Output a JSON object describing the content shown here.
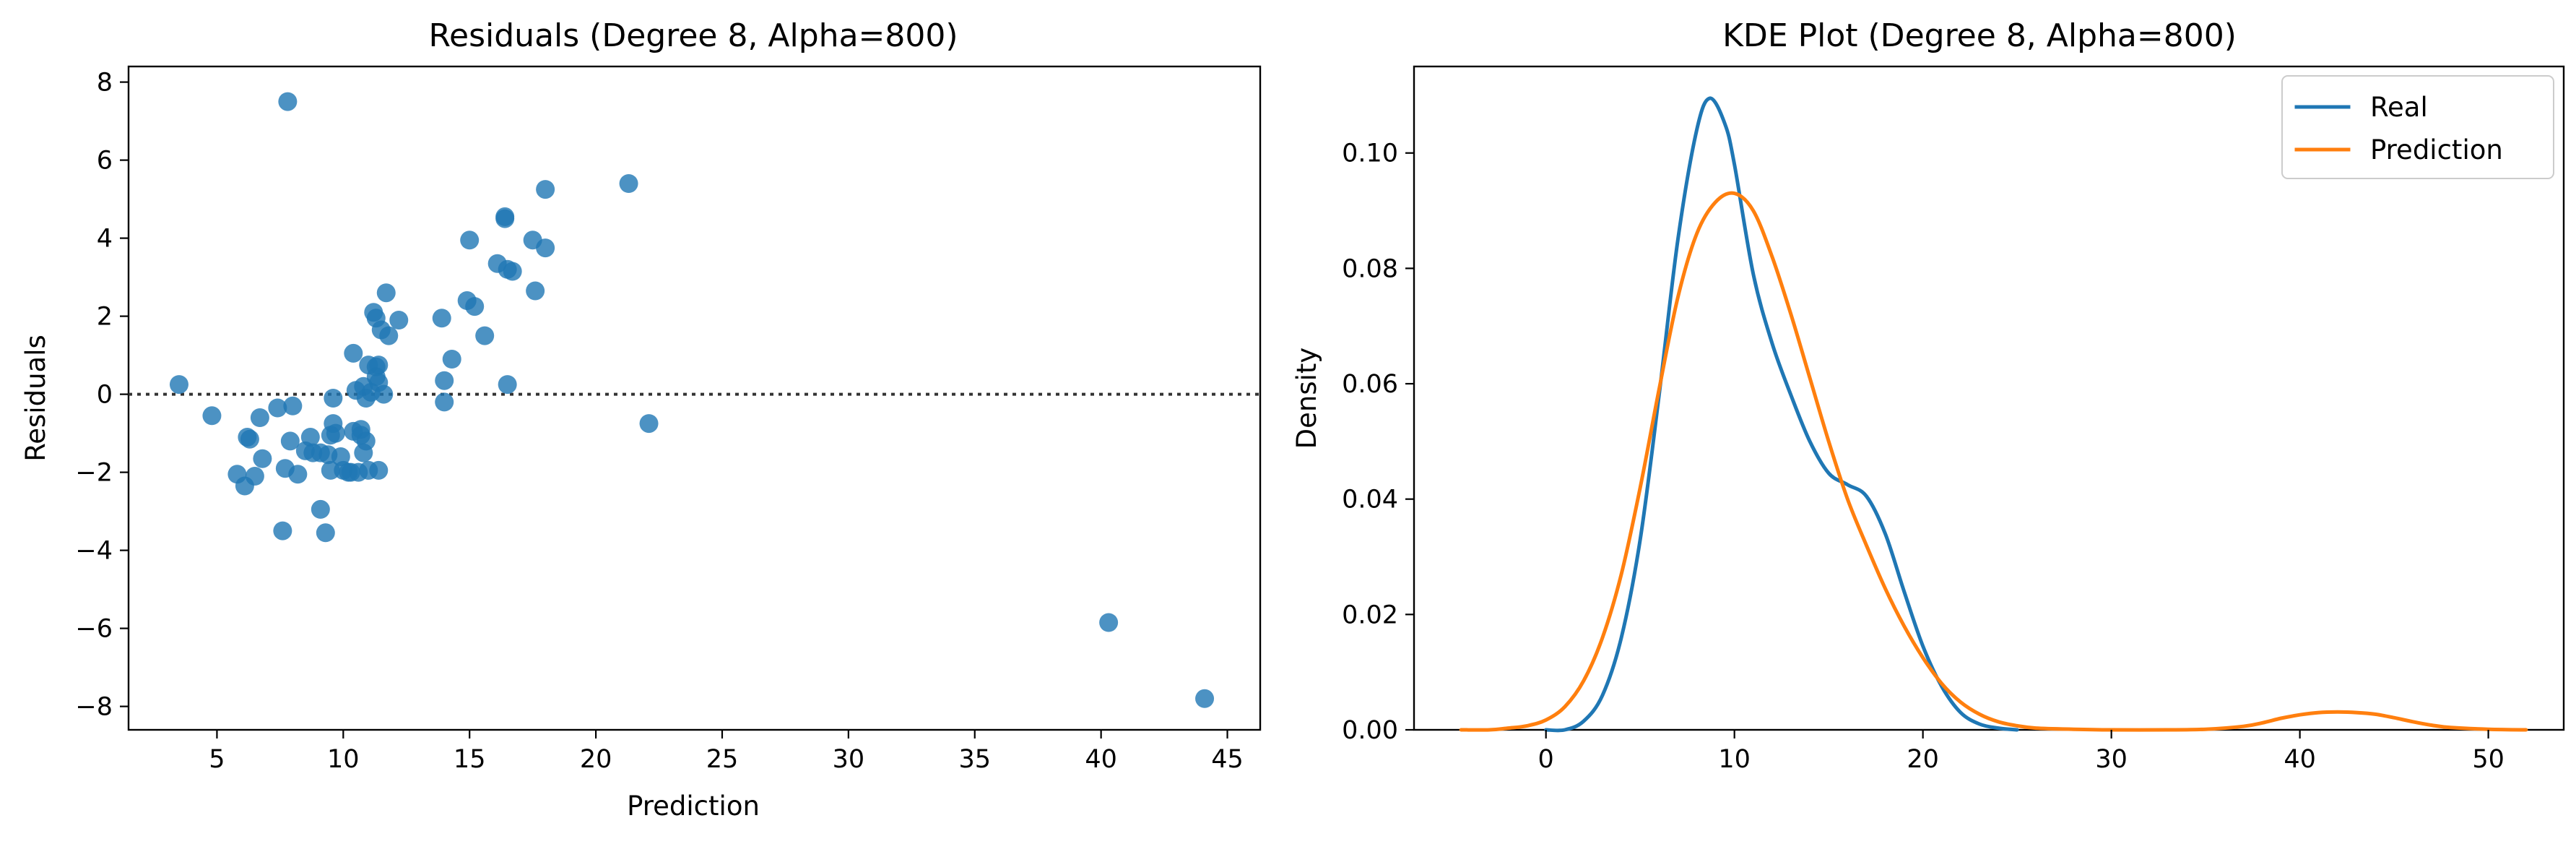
{
  "chart_data": [
    {
      "type": "scatter",
      "title": "Residuals (Degree 8, Alpha=800)",
      "xlabel": "Prediction",
      "ylabel": "Residuals",
      "xlim": [
        1.5,
        46.3
      ],
      "ylim": [
        -8.6,
        8.4
      ],
      "xticks": [
        5,
        10,
        15,
        20,
        25,
        30,
        35,
        40,
        45
      ],
      "yticks": [
        -8,
        -6,
        -4,
        -2,
        0,
        2,
        4,
        6,
        8
      ],
      "reference_line": {
        "y": 0,
        "style": "dotted",
        "color": "#333333"
      },
      "grid": false,
      "series": [
        {
          "color": "#1f77b4",
          "points": [
            [
              3.5,
              0.25
            ],
            [
              4.8,
              -0.55
            ],
            [
              5.8,
              -2.05
            ],
            [
              6.1,
              -2.35
            ],
            [
              6.2,
              -1.1
            ],
            [
              6.3,
              -1.15
            ],
            [
              6.5,
              -2.1
            ],
            [
              6.7,
              -0.6
            ],
            [
              6.8,
              -1.65
            ],
            [
              7.4,
              -0.35
            ],
            [
              7.6,
              -3.5
            ],
            [
              7.7,
              -1.9
            ],
            [
              7.9,
              -1.2
            ],
            [
              8.0,
              -0.3
            ],
            [
              8.2,
              -2.05
            ],
            [
              8.5,
              -1.45
            ],
            [
              8.7,
              -1.1
            ],
            [
              8.8,
              -1.5
            ],
            [
              9.1,
              -2.95
            ],
            [
              9.1,
              -1.5
            ],
            [
              9.3,
              -3.55
            ],
            [
              9.4,
              -1.55
            ],
            [
              9.5,
              -1.95
            ],
            [
              9.5,
              -1.05
            ],
            [
              9.6,
              -0.75
            ],
            [
              9.6,
              -0.1
            ],
            [
              9.7,
              -1.0
            ],
            [
              9.9,
              -1.6
            ],
            [
              10.0,
              -1.95
            ],
            [
              10.2,
              -2.0
            ],
            [
              10.3,
              -2.0
            ],
            [
              10.4,
              -0.95
            ],
            [
              10.4,
              1.05
            ],
            [
              10.5,
              0.1
            ],
            [
              10.6,
              -2.0
            ],
            [
              10.7,
              -1.05
            ],
            [
              10.7,
              -0.9
            ],
            [
              10.8,
              -1.5
            ],
            [
              10.8,
              0.2
            ],
            [
              10.9,
              -1.2
            ],
            [
              10.9,
              -0.1
            ],
            [
              11.0,
              -1.95
            ],
            [
              11.0,
              0.75
            ],
            [
              11.1,
              0.05
            ],
            [
              11.2,
              2.1
            ],
            [
              11.3,
              0.45
            ],
            [
              11.3,
              0.7
            ],
            [
              11.3,
              1.95
            ],
            [
              11.4,
              -1.95
            ],
            [
              11.4,
              0.75
            ],
            [
              11.4,
              0.3
            ],
            [
              11.5,
              1.65
            ],
            [
              11.6,
              0.0
            ],
            [
              11.7,
              2.6
            ],
            [
              11.8,
              1.5
            ],
            [
              12.2,
              1.9
            ],
            [
              13.9,
              1.95
            ],
            [
              14.0,
              0.35
            ],
            [
              14.0,
              -0.2
            ],
            [
              14.3,
              0.9
            ],
            [
              14.9,
              2.4
            ],
            [
              15.0,
              3.95
            ],
            [
              15.2,
              2.25
            ],
            [
              15.6,
              1.5
            ],
            [
              16.1,
              3.35
            ],
            [
              16.4,
              4.5
            ],
            [
              16.4,
              4.55
            ],
            [
              16.5,
              3.2
            ],
            [
              16.7,
              3.15
            ],
            [
              16.5,
              0.25
            ],
            [
              17.5,
              3.95
            ],
            [
              17.6,
              2.65
            ],
            [
              18.0,
              5.25
            ],
            [
              18.0,
              3.75
            ],
            [
              21.3,
              5.4
            ],
            [
              22.1,
              -0.75
            ],
            [
              7.8,
              7.5
            ],
            [
              40.3,
              -5.85
            ],
            [
              44.1,
              -7.8
            ]
          ]
        }
      ]
    },
    {
      "type": "line",
      "title": "KDE Plot (Degree 8, Alpha=800)",
      "xlabel": "",
      "ylabel": "Density",
      "xlim": [
        -7,
        54
      ],
      "ylim": [
        0,
        0.115
      ],
      "xticks": [
        0,
        10,
        20,
        30,
        40,
        50
      ],
      "yticks": [
        0.0,
        0.02,
        0.04,
        0.06,
        0.08,
        0.1
      ],
      "ytick_labels": [
        "0.00",
        "0.02",
        "0.04",
        "0.06",
        "0.08",
        "0.10"
      ],
      "legend": {
        "position": "top-right",
        "entries": [
          "Real",
          "Prediction"
        ]
      },
      "grid": false,
      "series": [
        {
          "name": "Real",
          "color": "#1f77b4",
          "points": [
            [
              0,
              0.0
            ],
            [
              1,
              0.0
            ],
            [
              2,
              0.0015
            ],
            [
              3,
              0.006
            ],
            [
              4,
              0.016
            ],
            [
              5,
              0.033
            ],
            [
              6,
              0.058
            ],
            [
              7,
              0.085
            ],
            [
              8,
              0.104
            ],
            [
              8.7,
              0.1095
            ],
            [
              9.5,
              0.105
            ],
            [
              10,
              0.098
            ],
            [
              11,
              0.079
            ],
            [
              12,
              0.067
            ],
            [
              13,
              0.058
            ],
            [
              14,
              0.05
            ],
            [
              15,
              0.0445
            ],
            [
              16,
              0.0425
            ],
            [
              17,
              0.0405
            ],
            [
              18,
              0.034
            ],
            [
              19,
              0.024
            ],
            [
              20,
              0.0145
            ],
            [
              21,
              0.0075
            ],
            [
              22,
              0.003
            ],
            [
              23,
              0.001
            ],
            [
              24,
              0.0003
            ],
            [
              25,
              0.0
            ]
          ]
        },
        {
          "name": "Prediction",
          "color": "#ff7f0e",
          "points": [
            [
              -4.5,
              0.0
            ],
            [
              -3,
              0.0
            ],
            [
              -2,
              0.0003
            ],
            [
              -1,
              0.0007
            ],
            [
              0,
              0.0017
            ],
            [
              1,
              0.004
            ],
            [
              2,
              0.0085
            ],
            [
              3,
              0.016
            ],
            [
              4,
              0.027
            ],
            [
              5,
              0.042
            ],
            [
              6,
              0.059
            ],
            [
              7,
              0.075
            ],
            [
              8,
              0.086
            ],
            [
              9,
              0.0915
            ],
            [
              10,
              0.093
            ],
            [
              11,
              0.09
            ],
            [
              12,
              0.082
            ],
            [
              13,
              0.072
            ],
            [
              14,
              0.061
            ],
            [
              15,
              0.05
            ],
            [
              16,
              0.04
            ],
            [
              17,
              0.032
            ],
            [
              18,
              0.0245
            ],
            [
              19,
              0.018
            ],
            [
              20,
              0.0125
            ],
            [
              21,
              0.008
            ],
            [
              22,
              0.0048
            ],
            [
              23,
              0.0027
            ],
            [
              24,
              0.0014
            ],
            [
              25,
              0.0007
            ],
            [
              26,
              0.0003
            ],
            [
              28,
              0.0001
            ],
            [
              30,
              0.0
            ],
            [
              33,
              0.0
            ],
            [
              35,
              0.0001
            ],
            [
              37,
              0.0006
            ],
            [
              38,
              0.0012
            ],
            [
              39,
              0.002
            ],
            [
              40,
              0.0026
            ],
            [
              41,
              0.003
            ],
            [
              42,
              0.0031
            ],
            [
              43,
              0.003
            ],
            [
              44,
              0.0027
            ],
            [
              45,
              0.0021
            ],
            [
              46,
              0.0014
            ],
            [
              47,
              0.0008
            ],
            [
              48,
              0.0004
            ],
            [
              50,
              0.0001
            ],
            [
              52,
              0.0
            ]
          ]
        }
      ]
    }
  ]
}
